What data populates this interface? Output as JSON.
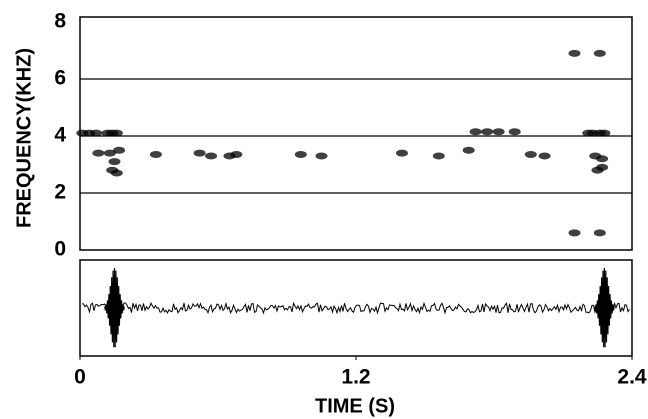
{
  "chart_data": {
    "type": "spectrogram",
    "x_label": "TIME (S)",
    "y_label": "FREQUENCY(KHZ)",
    "xlim": [
      0,
      2.4
    ],
    "xticks": [
      0,
      1.2,
      2.4
    ],
    "ylim": [
      0,
      8
    ],
    "yticks": [
      0,
      2,
      4,
      6,
      8
    ],
    "grid": true,
    "color": "#000000",
    "x": [
      0.01,
      0.04,
      0.07,
      0.12,
      0.14,
      0.16,
      0.13,
      0.15,
      0.17,
      0.14,
      0.16,
      0.08,
      0.33,
      0.52,
      0.57,
      0.65,
      0.68,
      0.96,
      1.05,
      1.4,
      1.56,
      1.69,
      1.72,
      1.77,
      1.82,
      1.89,
      1.96,
      2.02,
      2.21,
      2.23,
      2.26,
      2.28,
      2.24,
      2.27,
      2.25,
      2.27,
      2.15,
      2.15,
      2.26,
      2.26
    ],
    "values": [
      4.1,
      4.1,
      4.1,
      4.1,
      4.1,
      4.1,
      3.4,
      3.1,
      3.5,
      2.8,
      2.7,
      3.4,
      3.35,
      3.4,
      3.3,
      3.3,
      3.35,
      3.35,
      3.3,
      3.4,
      3.3,
      3.5,
      4.15,
      4.15,
      4.15,
      4.15,
      3.35,
      3.3,
      4.1,
      4.1,
      4.1,
      4.1,
      3.3,
      3.2,
      2.8,
      2.9,
      6.9,
      0.6,
      6.9,
      0.6
    ],
    "bursts": [
      0.15,
      2.28
    ]
  }
}
